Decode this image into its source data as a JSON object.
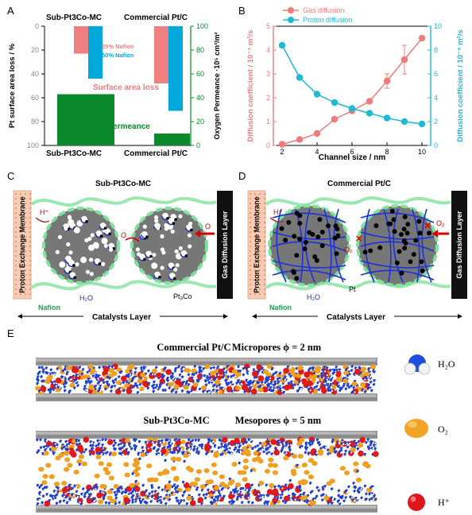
{
  "panels": {
    "a": "A",
    "b": "B",
    "c": "C",
    "d": "D",
    "e": "E"
  },
  "chart_data": [
    {
      "type": "bar",
      "title": "",
      "groups": [
        "Sub-Pt3Co-MC",
        "Commercial Pt/C"
      ],
      "group_labels_top": [
        "Sub-Pt3Co-MC",
        "Commercial Pt/C"
      ],
      "group_labels_bottom": [
        "Sub-Pt3Co-MC",
        "Commercial Pt/C"
      ],
      "series": [
        {
          "name": "25% Nafion",
          "color": "#f08080",
          "values": [
            23,
            48
          ],
          "axis": "left",
          "direction": "down"
        },
        {
          "name": "50% Nafion",
          "color": "#00a8dc",
          "values": [
            44,
            71
          ],
          "axis": "left",
          "direction": "down"
        },
        {
          "name": "Oxygen Permeance",
          "color": "#0a8a2a",
          "values": [
            43,
            10
          ],
          "axis": "right",
          "direction": "up"
        }
      ],
      "annotations": [
        "25% Nafion",
        "50% Nafion",
        "Surface area loss",
        "Oxygen Permeance"
      ],
      "ylabel_left": "Pt surface area loss / %",
      "ylabel_right": "Oxygen Permeance ·10⁵ cm³/m²",
      "ylim_left": [
        0,
        100
      ],
      "ylim_right": [
        0,
        100
      ],
      "left_ticks": [
        "0",
        "20",
        "40",
        "60",
        "80",
        "100"
      ],
      "right_ticks": [
        "0",
        "20",
        "40",
        "60",
        "80",
        "100"
      ]
    },
    {
      "type": "line",
      "title": "",
      "x": [
        2,
        3,
        4,
        5,
        6,
        7,
        8,
        9,
        10
      ],
      "series": [
        {
          "name": "Gas diffusion",
          "color": "#f07b7b",
          "axis": "left",
          "values": [
            0.05,
            0.25,
            0.5,
            1.1,
            1.45,
            1.85,
            2.7,
            3.6,
            4.5
          ]
        },
        {
          "name": "Proton diffusion",
          "color": "#1fb8d6",
          "axis": "right",
          "values": [
            8.4,
            5.7,
            4.3,
            3.6,
            3.1,
            2.7,
            2.3,
            2.0,
            1.8
          ]
        }
      ],
      "xlabel": "Channel size / nm",
      "ylabel_left": "Diffusion coefficient / 10⁻⁷ m²/s",
      "ylabel_right": "Diffusion coefficient / 10⁻⁹ m²/s",
      "xlim": [
        1.5,
        10.5
      ],
      "ylim_left": [
        0,
        5
      ],
      "ylim_right": [
        0,
        10
      ],
      "x_ticks": [
        "2",
        "4",
        "6",
        "8",
        "10"
      ],
      "left_ticks": [
        "0",
        "1",
        "2",
        "3",
        "4",
        "5"
      ],
      "right_ticks": [
        "0",
        "2",
        "4",
        "6",
        "8",
        "10"
      ],
      "legend": "top-left"
    }
  ],
  "schematic_c": {
    "title": "Sub-Pt3Co-MC",
    "membrane": "Proton Exchange Membrane",
    "gdl": "Gas Diffusion Layer",
    "layer": "Catalysts Layer",
    "labels": {
      "proton": "H⁺",
      "oxygen_left": "O",
      "oxygen_right": "O",
      "water": "H₂O",
      "nafion": "Nafion",
      "alloy": "Pt₃Co"
    }
  },
  "schematic_d": {
    "title": "Commercial Pt/C",
    "membrane": "Proton Exchange Membrane",
    "gdl": "Gas Diffusion Layer",
    "layer": "Catalysts Layer",
    "labels": {
      "proton": "H⁺",
      "oxygen_left": "O₂",
      "oxygen_right": "O₂",
      "water": "H₂O",
      "nafion": "Nafion",
      "pt": "Pt"
    }
  },
  "simulation": {
    "top_title": "Commercial Pt/C",
    "top_pores": "Micropores ϕ = 2 nm",
    "bottom_title": "Sub-Pt3Co-MC",
    "bottom_pores": "Mesopores ϕ = 5 nm",
    "legend": [
      {
        "label": "H₂O",
        "name": "water"
      },
      {
        "label": "O₂",
        "name": "oxygen"
      },
      {
        "label": "H⁺",
        "name": "proton"
      }
    ]
  }
}
